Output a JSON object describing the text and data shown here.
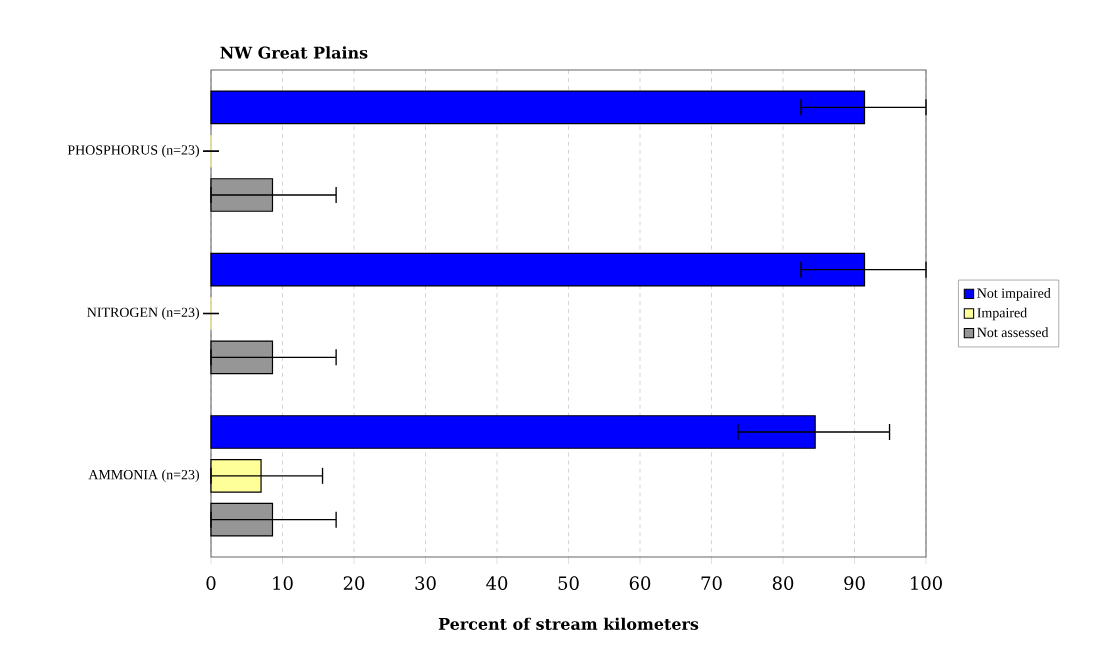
{
  "chart_data": {
    "type": "bar",
    "orientation": "horizontal",
    "title": "NW Great Plains",
    "xlabel": "Percent of stream kilometers",
    "categories": [
      "PHOSPHORUS (n=23)",
      "NITROGEN (n=23)",
      "AMMONIA (n=23)"
    ],
    "series": [
      {
        "name": "Not impaired",
        "color": "#0000ff",
        "values": [
          91.4,
          91.4,
          84.5
        ],
        "errors": [
          [
            82.5,
            100
          ],
          [
            82.5,
            100
          ],
          [
            73.7,
            94.9
          ]
        ]
      },
      {
        "name": "Impaired",
        "color": "#ffff99",
        "values": [
          0,
          0,
          7.0
        ],
        "errors": [
          [
            0,
            0
          ],
          [
            0,
            0
          ],
          [
            0,
            15.6
          ]
        ]
      },
      {
        "name": "Not assessed",
        "color": "#969696",
        "values": [
          8.6,
          8.6,
          8.6
        ],
        "errors": [
          [
            0,
            17.5
          ],
          [
            0,
            17.5
          ],
          [
            0,
            17.5
          ]
        ]
      }
    ],
    "xlim": [
      0,
      100
    ],
    "xticks": [
      0,
      10,
      20,
      30,
      40,
      50,
      60,
      70,
      80,
      90,
      100
    ],
    "grid": "x",
    "legend": "right"
  }
}
